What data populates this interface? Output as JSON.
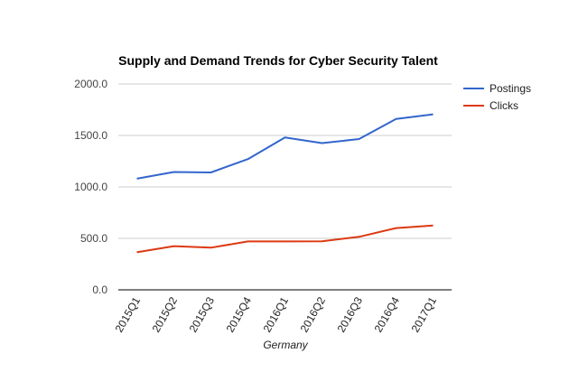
{
  "chart_data": {
    "type": "line",
    "title": "Supply and Demand Trends for Cyber Security Talent",
    "xlabel": "Germany",
    "ylabel": "",
    "categories": [
      "2015Q1",
      "2015Q2",
      "2015Q3",
      "2015Q4",
      "2016Q1",
      "2016Q2",
      "2016Q3",
      "2016Q4",
      "2017Q1"
    ],
    "ylim": [
      0,
      2000
    ],
    "yticks": [
      0,
      500,
      1000,
      1500,
      2000
    ],
    "ytick_labels": [
      "0.0",
      "500.0",
      "1000.0",
      "1500.0",
      "2000.0"
    ],
    "grid": true,
    "legend_position": "right",
    "series": [
      {
        "name": "Postings",
        "color": "#3366cc",
        "values": [
          1080,
          1145,
          1140,
          1270,
          1480,
          1425,
          1465,
          1660,
          1705
        ]
      },
      {
        "name": "Clicks",
        "color": "#dc3912",
        "values": [
          365,
          425,
          410,
          470,
          470,
          472,
          515,
          600,
          625
        ]
      }
    ]
  }
}
